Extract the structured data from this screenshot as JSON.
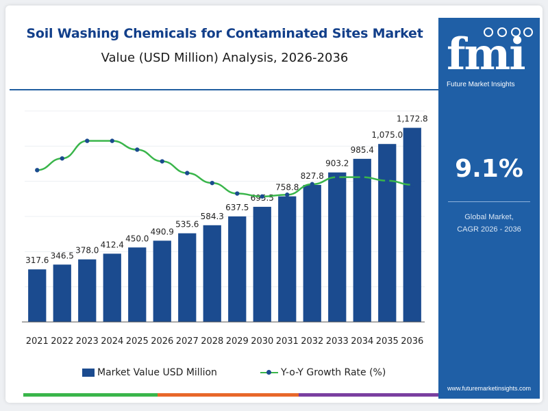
{
  "header": {
    "title": "Soil Washing Chemicals for Contaminated Sites Market",
    "subtitle": "Value (USD Million) Analysis, 2026-2036"
  },
  "sidebar": {
    "logo_text": "fmi",
    "logo_subtext": "Future Market Insights",
    "cagr_value": "9.1%",
    "cagr_label": "Global Market,\nCAGR 2026 - 2036",
    "website": "www.futuremarketinsights.com",
    "background_color": "#1f5fa6"
  },
  "legend": {
    "bar_label": "Market Value USD Million",
    "line_label": "Y-o-Y Growth Rate (%)"
  },
  "chart_data": {
    "type": "bar",
    "categories": [
      "2021",
      "2022",
      "2023",
      "2024",
      "2025",
      "2026",
      "2027",
      "2028",
      "2029",
      "2030",
      "2031",
      "2032",
      "2033",
      "2034",
      "2035",
      "2036"
    ],
    "series": [
      {
        "name": "Market Value USD Million",
        "type": "bar",
        "color": "#1b4b8f",
        "values": [
          317.6,
          346.5,
          378.0,
          412.4,
          450.0,
          490.9,
          535.6,
          584.3,
          637.5,
          695.5,
          758.8,
          827.8,
          903.2,
          985.4,
          1075.0,
          1172.8
        ],
        "labels": [
          "317.6",
          "346.5",
          "378.0",
          "412.4",
          "450.0",
          "490.9",
          "535.6",
          "584.3",
          "637.5",
          "695.5",
          "758.8",
          "827.8",
          "903.2",
          "985.4",
          "1,075.0",
          "1,172.8"
        ]
      },
      {
        "name": "Y-o-Y Growth Rate (%)",
        "type": "line",
        "color": "#39b54a",
        "marker_color": "#1b4b8f",
        "values": [
          8.9,
          9.1,
          9.4,
          9.4,
          9.25,
          9.05,
          8.85,
          8.68,
          8.5,
          8.45,
          8.48,
          8.66,
          8.78,
          8.78,
          8.72,
          8.65
        ]
      }
    ],
    "ylim": [
      0,
      1200
    ],
    "y2lim": [
      7.5,
      9.7
    ],
    "grid": true,
    "legend_position": "bottom",
    "accent_colors": [
      "#39b54a",
      "#e8672a",
      "#7a3fa0"
    ]
  }
}
